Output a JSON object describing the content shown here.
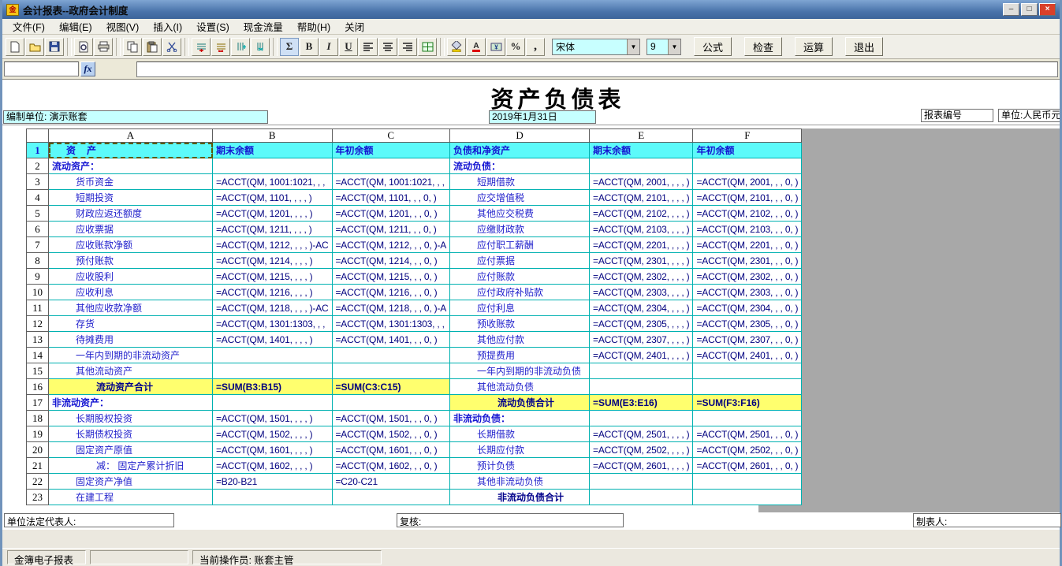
{
  "window": {
    "title": "会计报表--政府会计制度",
    "icon_text": "金",
    "minimize": "–",
    "maximize": "□",
    "close": "×"
  },
  "menu": {
    "items": [
      "文件(F)",
      "编辑(E)",
      "视图(V)",
      "插入(I)",
      "设置(S)",
      "现金流量",
      "帮助(H)",
      "关闭"
    ]
  },
  "toolbar": {
    "icons": [
      "new-icon",
      "open-icon",
      "save-icon",
      "print-preview-icon",
      "print-icon",
      "copy-icon",
      "paste-icon",
      "cut-icon",
      "insert-row-icon",
      "delete-row-icon",
      "insert-col-icon",
      "delete-col-icon",
      "sum-icon",
      "bold-icon",
      "italic-icon",
      "underline-icon",
      "align-left-icon",
      "align-center-icon",
      "align-right-icon",
      "merge-cells-icon",
      "fill-color-icon",
      "font-color-icon",
      "currency-icon",
      "percent-icon",
      "comma-icon"
    ],
    "glyphs": {
      "sum": "Σ",
      "bold": "B",
      "italic": "I",
      "underline": "U",
      "percent": "%",
      "comma": ",",
      "font_color": "A",
      "currency": "¥"
    },
    "font_name": "宋体",
    "font_size": "9",
    "action_buttons": [
      "公式",
      "检查",
      "运算",
      "退出"
    ],
    "dropdown_arrow": "▼"
  },
  "formula_bar": {
    "fx_label": "fx",
    "name_box_value": "",
    "formula_value": ""
  },
  "report": {
    "title": "资产负债表",
    "prepared_unit": "编制单位: 演示账套",
    "date": "2019年1月31日",
    "report_no": "报表编号",
    "currency_unit": "单位:人民币元",
    "legal_rep": "单位法定代表人:",
    "reviewer": "复核:",
    "preparer": "制表人:"
  },
  "sheet": {
    "col_headers": [
      "A",
      "B",
      "C",
      "D",
      "E",
      "F"
    ],
    "rows": [
      {
        "n": "1",
        "cls": "r1",
        "cells": [
          [
            "资　产",
            "sel pa"
          ],
          [
            "期末余额",
            ""
          ],
          [
            "年初余额",
            ""
          ],
          [
            "负债和净资产",
            ""
          ],
          [
            "期末余额",
            ""
          ],
          [
            "年初余额",
            ""
          ]
        ]
      },
      {
        "n": "2",
        "cells": [
          [
            "流动资产：",
            "sec"
          ],
          [
            "",
            ""
          ],
          [
            "",
            ""
          ],
          [
            "流动负债：",
            "sec"
          ],
          [
            "",
            ""
          ],
          [
            "",
            ""
          ]
        ]
      },
      {
        "n": "3",
        "cells": [
          [
            "货币资金",
            "lbl i1"
          ],
          [
            "=ACCT(QM, 1001:1021, , ,",
            "f"
          ],
          [
            "=ACCT(QM, 1001:1021, , ,",
            "f"
          ],
          [
            "短期借款",
            "lbl i1"
          ],
          [
            "=ACCT(QM, 2001, , , , )",
            "f"
          ],
          [
            "=ACCT(QM, 2001, , , 0, )",
            "f"
          ]
        ]
      },
      {
        "n": "4",
        "cells": [
          [
            "短期投资",
            "lbl i1"
          ],
          [
            "=ACCT(QM, 1101, , , , )",
            "f"
          ],
          [
            "=ACCT(QM, 1101, , , 0, )",
            "f"
          ],
          [
            "应交增值税",
            "lbl i1"
          ],
          [
            "=ACCT(QM, 2101, , , , )",
            "f"
          ],
          [
            "=ACCT(QM, 2101, , , 0, )",
            "f"
          ]
        ]
      },
      {
        "n": "5",
        "cells": [
          [
            "财政应返还额度",
            "lbl i1"
          ],
          [
            "=ACCT(QM, 1201, , , , )",
            "f"
          ],
          [
            "=ACCT(QM, 1201, , , 0, )",
            "f"
          ],
          [
            "其他应交税费",
            "lbl i1"
          ],
          [
            "=ACCT(QM, 2102, , , , )",
            "f"
          ],
          [
            "=ACCT(QM, 2102, , , 0, )",
            "f"
          ]
        ]
      },
      {
        "n": "6",
        "cells": [
          [
            "应收票据",
            "lbl i1"
          ],
          [
            "=ACCT(QM, 1211, , , , )",
            "f"
          ],
          [
            "=ACCT(QM, 1211, , , 0, )",
            "f"
          ],
          [
            "应缴财政款",
            "lbl i1"
          ],
          [
            "=ACCT(QM, 2103, , , , )",
            "f"
          ],
          [
            "=ACCT(QM, 2103, , , 0, )",
            "f"
          ]
        ]
      },
      {
        "n": "7",
        "cells": [
          [
            "应收账款净额",
            "lbl i1"
          ],
          [
            "=ACCT(QM, 1212, , , , )-AC",
            "f"
          ],
          [
            "=ACCT(QM, 1212, , , 0, )-A",
            "f"
          ],
          [
            "应付职工薪酬",
            "lbl i1"
          ],
          [
            "=ACCT(QM, 2201, , , , )",
            "f"
          ],
          [
            "=ACCT(QM, 2201, , , 0, )",
            "f"
          ]
        ]
      },
      {
        "n": "8",
        "cells": [
          [
            "预付账款",
            "lbl i1"
          ],
          [
            "=ACCT(QM, 1214, , , , )",
            "f"
          ],
          [
            "=ACCT(QM, 1214, , , 0, )",
            "f"
          ],
          [
            "应付票据",
            "lbl i1"
          ],
          [
            "=ACCT(QM, 2301, , , , )",
            "f"
          ],
          [
            "=ACCT(QM, 2301, , , 0, )",
            "f"
          ]
        ]
      },
      {
        "n": "9",
        "cells": [
          [
            "应收股利",
            "lbl i1"
          ],
          [
            "=ACCT(QM, 1215, , , , )",
            "f"
          ],
          [
            "=ACCT(QM, 1215, , , 0, )",
            "f"
          ],
          [
            "应付账款",
            "lbl i1"
          ],
          [
            "=ACCT(QM, 2302, , , , )",
            "f"
          ],
          [
            "=ACCT(QM, 2302, , , 0, )",
            "f"
          ]
        ]
      },
      {
        "n": "10",
        "cells": [
          [
            "应收利息",
            "lbl i1"
          ],
          [
            "=ACCT(QM, 1216, , , , )",
            "f"
          ],
          [
            "=ACCT(QM, 1216, , , 0, )",
            "f"
          ],
          [
            "应付政府补贴款",
            "lbl i1"
          ],
          [
            "=ACCT(QM, 2303, , , , )",
            "f"
          ],
          [
            "=ACCT(QM, 2303, , , 0, )",
            "f"
          ]
        ]
      },
      {
        "n": "11",
        "cells": [
          [
            "其他应收款净额",
            "lbl i1"
          ],
          [
            "=ACCT(QM, 1218, , , , )-AC",
            "f"
          ],
          [
            "=ACCT(QM, 1218, , , 0, )-A",
            "f"
          ],
          [
            "应付利息",
            "lbl i1"
          ],
          [
            "=ACCT(QM, 2304, , , , )",
            "f"
          ],
          [
            "=ACCT(QM, 2304, , , 0, )",
            "f"
          ]
        ]
      },
      {
        "n": "12",
        "cells": [
          [
            "存货",
            "lbl i1"
          ],
          [
            "=ACCT(QM, 1301:1303, , ,",
            "f"
          ],
          [
            "=ACCT(QM, 1301:1303, , ,",
            "f"
          ],
          [
            "预收账款",
            "lbl i1"
          ],
          [
            "=ACCT(QM, 2305, , , , )",
            "f"
          ],
          [
            "=ACCT(QM, 2305, , , 0, )",
            "f"
          ]
        ]
      },
      {
        "n": "13",
        "cells": [
          [
            "待摊费用",
            "lbl i1"
          ],
          [
            "=ACCT(QM, 1401, , , , )",
            "f"
          ],
          [
            "=ACCT(QM, 1401, , , 0, )",
            "f"
          ],
          [
            "其他应付款",
            "lbl i1"
          ],
          [
            "=ACCT(QM, 2307, , , , )",
            "f"
          ],
          [
            "=ACCT(QM, 2307, , , 0, )",
            "f"
          ]
        ]
      },
      {
        "n": "14",
        "cells": [
          [
            "一年内到期的非流动资产",
            "lbl i1"
          ],
          [
            "",
            ""
          ],
          [
            "",
            ""
          ],
          [
            "预提费用",
            "lbl i1"
          ],
          [
            "=ACCT(QM, 2401, , , , )",
            "f"
          ],
          [
            "=ACCT(QM, 2401, , , 0, )",
            "f"
          ]
        ]
      },
      {
        "n": "15",
        "cells": [
          [
            "其他流动资产",
            "lbl i1"
          ],
          [
            "",
            ""
          ],
          [
            "",
            ""
          ],
          [
            "一年内到期的非流动负债",
            "lbl i1"
          ],
          [
            "",
            ""
          ],
          [
            "",
            ""
          ]
        ]
      },
      {
        "n": "16",
        "cells": [
          [
            "流动资产合计",
            "tot i2 ylw"
          ],
          [
            "=SUM(B3:B15)",
            "fb ylw"
          ],
          [
            "=SUM(C3:C15)",
            "fb ylw"
          ],
          [
            "其他流动负债",
            "lbl i1"
          ],
          [
            "",
            ""
          ],
          [
            "",
            ""
          ]
        ]
      },
      {
        "n": "17",
        "cells": [
          [
            "非流动资产：",
            "sec"
          ],
          [
            "",
            ""
          ],
          [
            "",
            ""
          ],
          [
            "流动负债合计",
            "tot i2 ylw"
          ],
          [
            "=SUM(E3:E16)",
            "fb ylw"
          ],
          [
            "=SUM(F3:F16)",
            "fb ylw"
          ]
        ]
      },
      {
        "n": "18",
        "cells": [
          [
            "长期股权投资",
            "lbl i1"
          ],
          [
            "=ACCT(QM, 1501, , , , )",
            "f"
          ],
          [
            "=ACCT(QM, 1501, , , 0, )",
            "f"
          ],
          [
            "非流动负债：",
            "sec"
          ],
          [
            "",
            ""
          ],
          [
            "",
            ""
          ]
        ]
      },
      {
        "n": "19",
        "cells": [
          [
            "长期债权投资",
            "lbl i1"
          ],
          [
            "=ACCT(QM, 1502, , , , )",
            "f"
          ],
          [
            "=ACCT(QM, 1502, , , 0, )",
            "f"
          ],
          [
            "长期借款",
            "lbl i1"
          ],
          [
            "=ACCT(QM, 2501, , , , )",
            "f"
          ],
          [
            "=ACCT(QM, 2501, , , 0, )",
            "f"
          ]
        ]
      },
      {
        "n": "20",
        "cells": [
          [
            "固定资产原值",
            "lbl i1"
          ],
          [
            "=ACCT(QM, 1601, , , , )",
            "f"
          ],
          [
            "=ACCT(QM, 1601, , , 0, )",
            "f"
          ],
          [
            "长期应付款",
            "lbl i1"
          ],
          [
            "=ACCT(QM, 2502, , , , )",
            "f"
          ],
          [
            "=ACCT(QM, 2502, , , 0, )",
            "f"
          ]
        ]
      },
      {
        "n": "21",
        "cells": [
          [
            "减： 固定产累计折旧",
            "lbl i2"
          ],
          [
            "=ACCT(QM, 1602, , , , )",
            "f"
          ],
          [
            "=ACCT(QM, 1602, , , 0, )",
            "f"
          ],
          [
            "预计负债",
            "lbl i1"
          ],
          [
            "=ACCT(QM, 2601, , , , )",
            "f"
          ],
          [
            "=ACCT(QM, 2601, , , 0, )",
            "f"
          ]
        ]
      },
      {
        "n": "22",
        "cells": [
          [
            "固定资产净值",
            "lbl i1"
          ],
          [
            "=B20-B21",
            "f"
          ],
          [
            "=C20-C21",
            "f"
          ],
          [
            "其他非流动负债",
            "lbl i1"
          ],
          [
            "",
            ""
          ],
          [
            "",
            ""
          ]
        ]
      },
      {
        "n": "23",
        "cells": [
          [
            "在建工程",
            "lbl i1"
          ],
          [
            "",
            ""
          ],
          [
            "",
            ""
          ],
          [
            "非流动负债合计",
            "tot i2"
          ],
          [
            "",
            ""
          ],
          [
            "",
            ""
          ]
        ]
      }
    ]
  },
  "status_bar": {
    "app_name": "金簿电子报表",
    "operator": "当前操作员: 账套主管"
  }
}
